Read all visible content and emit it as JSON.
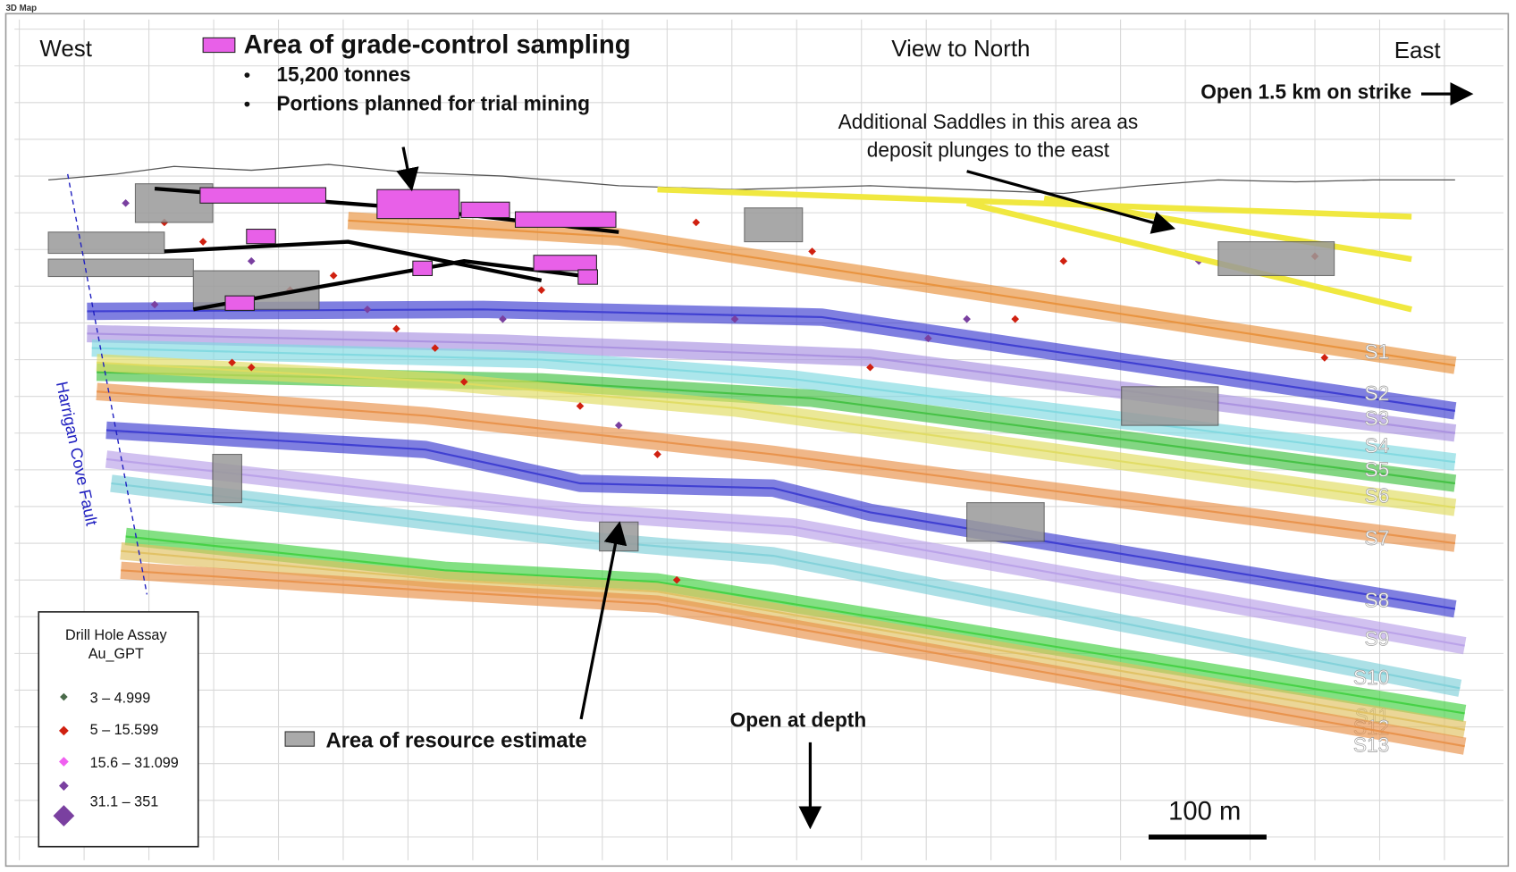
{
  "window_title": "3D Map",
  "labels": {
    "west": "West",
    "east": "East",
    "view": "View to North"
  },
  "grade_control": {
    "title": "Area of grade-control sampling",
    "bullets": [
      "15,200 tonnes",
      "Portions planned for trial mining"
    ]
  },
  "open_strike": "Open 1.5 km on strike",
  "saddles_note": [
    "Additional Saddles in this area as",
    "deposit plunges to the east"
  ],
  "fault": "Harrigan Cove Fault",
  "resource": "Area of resource estimate",
  "open_depth": "Open at depth",
  "scale": "100 m",
  "legend": {
    "title": [
      "Drill Hole Assay",
      "Au_GPT"
    ],
    "items": [
      "3 – 4.999",
      "5 – 15.599",
      "15.6 – 31.099",
      "31.1 – 351"
    ]
  },
  "seams": [
    "S1",
    "S2",
    "S3",
    "S4",
    "S5",
    "S6",
    "S7",
    "S8",
    "S9",
    "S10",
    "S11",
    "S12",
    "S13"
  ]
}
